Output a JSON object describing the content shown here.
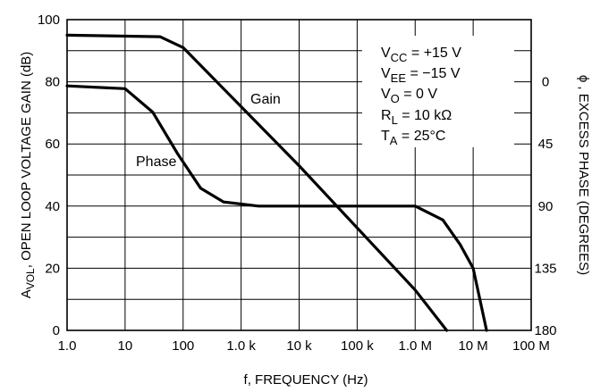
{
  "chart_data": {
    "type": "line",
    "title": "",
    "xlabel": "f, FREQUENCY (Hz)",
    "ylabel": "AVOL, OPEN LOOP VOLTAGE GAIN (dB)",
    "ylabel_parts": [
      "A",
      "VOL",
      ", OPEN LOOP VOLTAGE GAIN (dB)"
    ],
    "y2label": "ϕ , EXCESS PHASE (DEGREES)",
    "x_scale": "log",
    "xlim": [
      1,
      100000000
    ],
    "ylim": [
      0,
      100
    ],
    "y2lim": [
      180,
      -45
    ],
    "grid": true,
    "x_ticks": [
      1,
      10,
      100,
      1000,
      10000,
      100000,
      1000000,
      10000000,
      100000000
    ],
    "x_tick_labels": [
      "1.0",
      "10",
      "100",
      "1.0 k",
      "10 k",
      "100 k",
      "1.0 M",
      "10 M",
      "100 M"
    ],
    "y_ticks": [
      0,
      20,
      40,
      60,
      80,
      100
    ],
    "y_tick_labels": [
      "0",
      "20",
      "40",
      "60",
      "80",
      "100"
    ],
    "y2_ticks": [
      0,
      45,
      90,
      135,
      180
    ],
    "y2_tick_labels": [
      "0",
      "45",
      "90",
      "135",
      "180"
    ],
    "series": [
      {
        "name": "Gain",
        "axis": "left",
        "x": [
          1,
          40,
          100,
          1000,
          10000,
          100000,
          1000000,
          3500000
        ],
        "y": [
          95,
          94.5,
          91,
          72,
          53,
          33,
          13,
          0
        ]
      },
      {
        "name": "Phase",
        "axis": "right",
        "x": [
          1,
          10,
          30,
          80,
          200,
          500,
          2000,
          10000,
          100000,
          1000000,
          3000000,
          6000000,
          10000000,
          17000000
        ],
        "y": [
          3,
          5,
          22,
          52,
          77,
          87,
          90,
          90,
          90,
          90,
          100,
          118,
          135,
          180
        ]
      }
    ],
    "annotations": [
      "Gain",
      "Phase"
    ],
    "conditions": [
      {
        "base": "V",
        "sub": "CC",
        "rest": " = +15 V"
      },
      {
        "base": "V",
        "sub": "EE",
        "rest": " = −15 V"
      },
      {
        "base": "V",
        "sub": "O",
        "rest": " = 0 V"
      },
      {
        "base": "R",
        "sub": "L",
        "rest": " = 10 kΩ"
      },
      {
        "base": "T",
        "sub": "A",
        "rest": " = 25°C"
      }
    ]
  }
}
